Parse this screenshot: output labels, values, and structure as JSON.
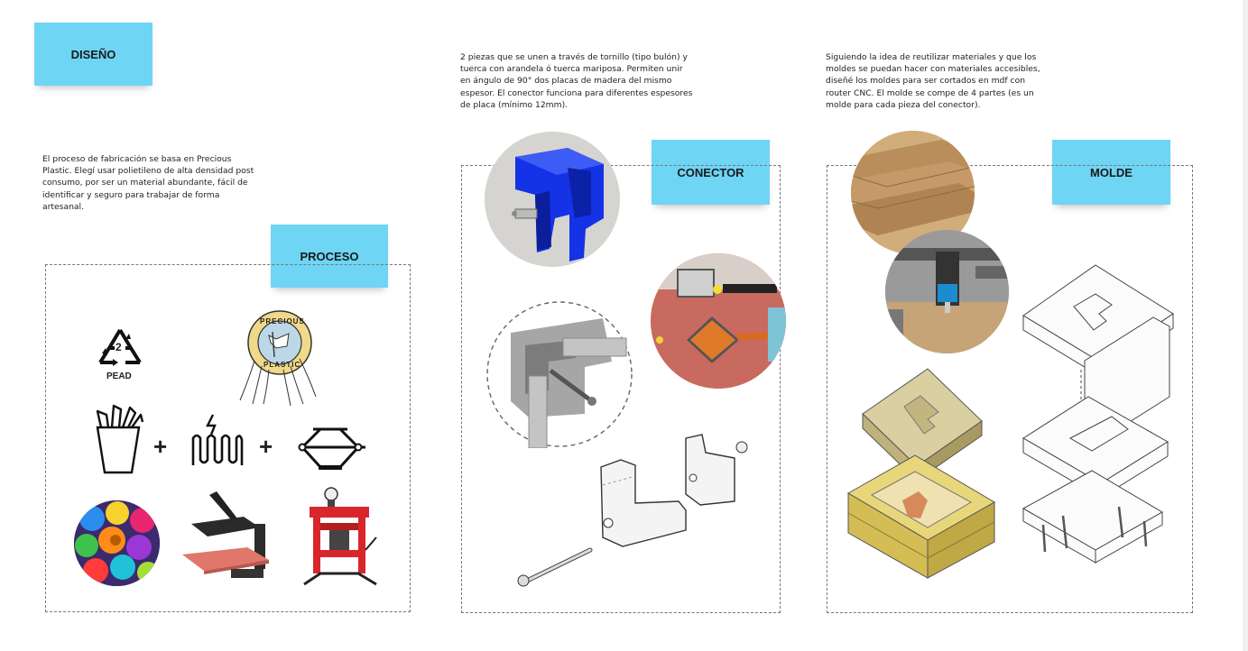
{
  "notes": {
    "diseno": "DISEÑO",
    "proceso": "PROCESO",
    "conector": "CONECTOR",
    "molde": "MOLDE"
  },
  "texts": {
    "diseno_body": "El proceso de fabricación se basa en Precious Plastic. Elegí usar polietileno de alta densidad post consumo, por ser un material abundante, fácil de identificar y seguro para trabajar de forma artesanal.",
    "conector_body": "2 piezas que se unen a través de tornillo (tipo bulón) y tuerca con arandela ó tuerca mariposa. Permiten unir en ángulo de 90° dos placas de madera del mismo espesor. El conector funciona para diferentes espesores de placa (mínimo 12mm).",
    "molde_body": "Siguiendo la idea de reutilizar materiales y que los moldes se puedan hacer con materiales accesibles, diseñé los moldes para ser cortados en mdf con router CNC. El molde se compe de 4 partes (es un molde para cada pieza del conector)."
  },
  "icons": {
    "recycle_number": "2",
    "recycle_label": "PEAD",
    "precious_top": "PRECIOUS",
    "precious_bottom": "PLASTIC",
    "plus": "+"
  },
  "colors": {
    "note": "#6fd5f5",
    "connector_blue": "#1432e6",
    "mdf": "#c9a06c",
    "press_red": "#d9262b"
  }
}
